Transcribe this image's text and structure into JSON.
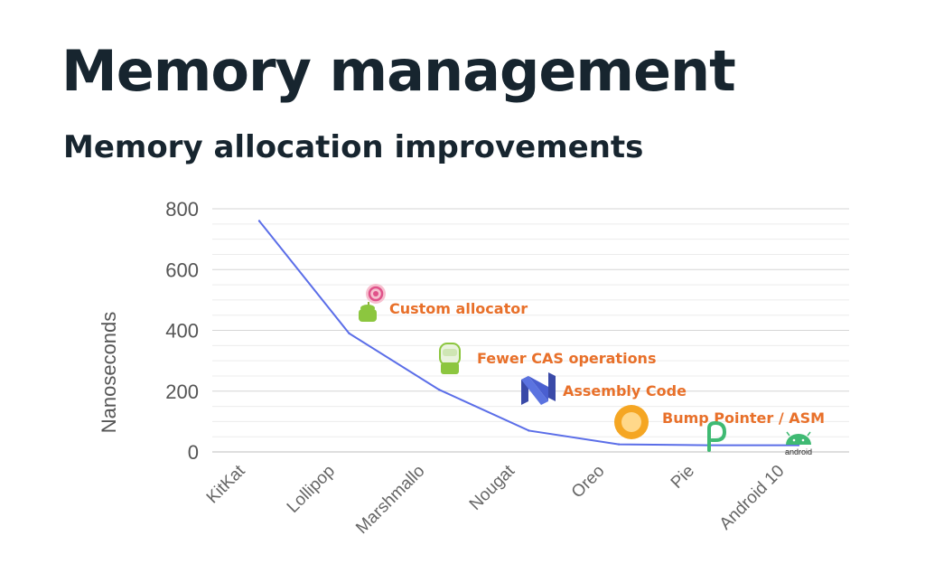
{
  "slide": {
    "title": "Memory management",
    "subtitle": "Memory allocation improvements"
  },
  "chart_data": {
    "type": "line",
    "categories": [
      "KitKat",
      "Lollipop",
      "Marshmallo",
      "Nougat",
      "Oreo",
      "Pie",
      "Android 10"
    ],
    "series": [
      {
        "values": [
          760,
          390,
          205,
          70,
          25,
          22,
          22
        ]
      }
    ],
    "ylabel": "Nanoseconds",
    "xlabel": "",
    "ylim": [
      0,
      800
    ],
    "yticks": [
      0,
      200,
      400,
      600,
      800
    ],
    "grid": true,
    "line_color": "#5b6ee8",
    "annotation_color": "#e8702a",
    "annotations": [
      {
        "text": "Custom allocator",
        "icon": "lollipop-icon"
      },
      {
        "text": "Fewer CAS operations",
        "icon": "marshmallow-icon"
      },
      {
        "text": "Assembly Code",
        "icon": "nougat-icon"
      },
      {
        "text": "Bump Pointer  / ASM",
        "icon": "oreo-icon"
      },
      {
        "text": "",
        "icon": "pie-icon"
      },
      {
        "text": "android",
        "icon": "android-icon"
      }
    ]
  }
}
